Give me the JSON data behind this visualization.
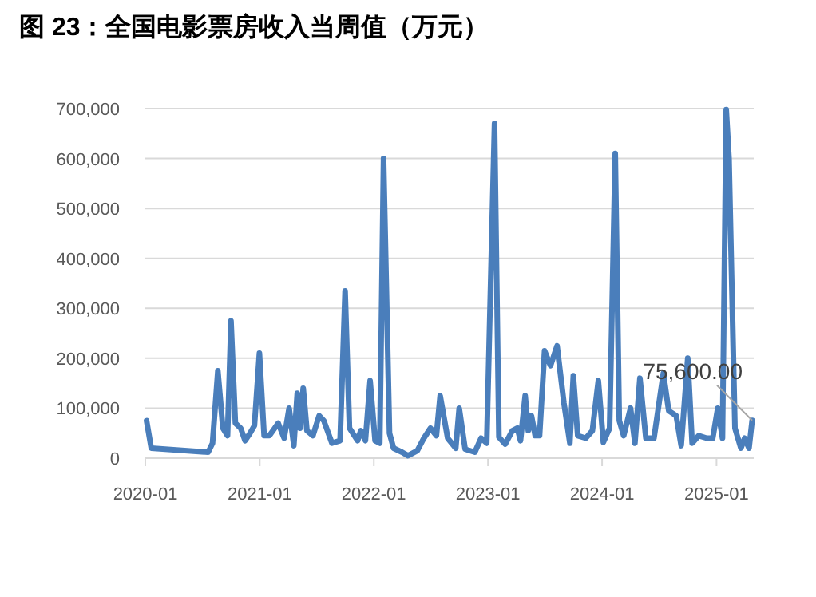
{
  "chart_data": {
    "type": "line",
    "title": "图 23：全国电影票房收入当周值（万元）",
    "x": [
      "2020-01-05",
      "2020-01-20",
      "2020-07-20",
      "2020-08-03",
      "2020-08-20",
      "2020-09-05",
      "2020-09-20",
      "2020-10-01",
      "2020-10-15",
      "2020-11-01",
      "2020-11-15",
      "2020-12-01",
      "2020-12-15",
      "2020-12-31",
      "2021-01-15",
      "2021-02-01",
      "2021-03-01",
      "2021-03-20",
      "2021-04-05",
      "2021-04-20",
      "2021-05-01",
      "2021-05-10",
      "2021-05-20",
      "2021-06-01",
      "2021-06-20",
      "2021-07-10",
      "2021-07-25",
      "2021-08-20",
      "2021-09-15",
      "2021-10-01",
      "2021-10-15",
      "2021-11-10",
      "2021-11-20",
      "2021-12-05",
      "2021-12-20",
      "2022-01-05",
      "2022-01-20",
      "2022-02-01",
      "2022-02-20",
      "2022-03-05",
      "2022-04-01",
      "2022-04-20",
      "2022-05-20",
      "2022-06-10",
      "2022-07-01",
      "2022-07-20",
      "2022-08-01",
      "2022-08-25",
      "2022-09-20",
      "2022-10-01",
      "2022-10-20",
      "2022-11-20",
      "2022-12-10",
      "2022-12-28",
      "2023-01-22",
      "2023-02-05",
      "2023-02-25",
      "2023-03-20",
      "2023-04-05",
      "2023-04-15",
      "2023-04-30",
      "2023-05-10",
      "2023-05-20",
      "2023-06-01",
      "2023-06-15",
      "2023-07-01",
      "2023-07-20",
      "2023-08-10",
      "2023-09-01",
      "2023-09-20",
      "2023-10-01",
      "2023-10-15",
      "2023-11-10",
      "2023-12-01",
      "2023-12-20",
      "2024-01-05",
      "2024-01-25",
      "2024-02-12",
      "2024-02-25",
      "2024-03-10",
      "2024-04-01",
      "2024-04-15",
      "2024-05-01",
      "2024-05-20",
      "2024-06-15",
      "2024-07-15",
      "2024-08-01",
      "2024-08-25",
      "2024-09-10",
      "2024-10-01",
      "2024-10-15",
      "2024-11-05",
      "2024-12-01",
      "2024-12-20",
      "2025-01-05",
      "2025-01-20",
      "2025-02-01",
      "2025-02-10",
      "2025-03-01",
      "2025-03-20",
      "2025-04-01",
      "2025-04-15",
      "2025-04-25"
    ],
    "values": [
      75000,
      20000,
      12000,
      30000,
      175000,
      60000,
      45000,
      275000,
      70000,
      60000,
      35000,
      50000,
      65000,
      210000,
      45000,
      45000,
      70000,
      40000,
      100000,
      25000,
      130000,
      60000,
      140000,
      55000,
      45000,
      85000,
      75000,
      30000,
      35000,
      335000,
      60000,
      35000,
      55000,
      35000,
      155000,
      35000,
      30000,
      600000,
      50000,
      20000,
      12000,
      5000,
      15000,
      40000,
      60000,
      45000,
      125000,
      40000,
      20000,
      100000,
      18000,
      12000,
      40000,
      30000,
      670000,
      42000,
      28000,
      55000,
      60000,
      35000,
      125000,
      55000,
      85000,
      45000,
      45000,
      215000,
      185000,
      225000,
      110000,
      30000,
      165000,
      45000,
      40000,
      55000,
      155000,
      32000,
      60000,
      610000,
      75000,
      45000,
      100000,
      30000,
      160000,
      40000,
      40000,
      170000,
      95000,
      85000,
      25000,
      200000,
      30000,
      45000,
      40000,
      40000,
      100000,
      40000,
      698000,
      600000,
      60000,
      20000,
      40000,
      20000,
      75600
    ],
    "color": "#4a7ebb",
    "xlim": [
      "2020-01-01",
      "2025-04-30"
    ],
    "xticks": [
      {
        "value": "2020-01-01",
        "label": "2020-01"
      },
      {
        "value": "2021-01-01",
        "label": "2021-01"
      },
      {
        "value": "2022-01-01",
        "label": "2022-01"
      },
      {
        "value": "2023-01-01",
        "label": "2023-01"
      },
      {
        "value": "2024-01-01",
        "label": "2024-01"
      },
      {
        "value": "2025-01-01",
        "label": "2025-01"
      }
    ],
    "ylim": [
      0,
      700000
    ],
    "yticks": [
      {
        "value": 0,
        "label": "0"
      },
      {
        "value": 100000,
        "label": "100,000"
      },
      {
        "value": 200000,
        "label": "200,000"
      },
      {
        "value": 300000,
        "label": "300,000"
      },
      {
        "value": 400000,
        "label": "400,000"
      },
      {
        "value": 500000,
        "label": "500,000"
      },
      {
        "value": 600000,
        "label": "600,000"
      },
      {
        "value": 700000,
        "label": "700,000"
      }
    ],
    "grid": "y",
    "annotations": [
      {
        "text": "75,600.00",
        "x": "2025-04-25",
        "y": 75600
      }
    ]
  }
}
